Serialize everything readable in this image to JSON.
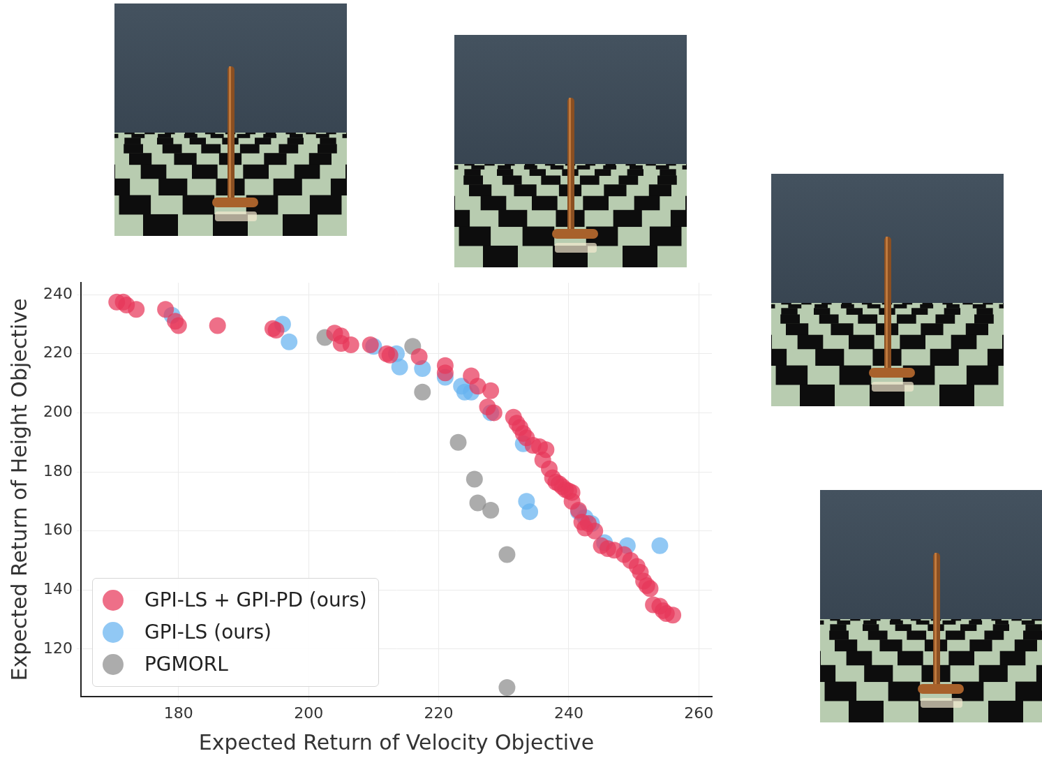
{
  "chart_data": {
    "type": "scatter",
    "x_label": "Expected Return of Velocity Objective",
    "y_label": "Expected Return of Height Objective",
    "xlim": [
      165,
      262
    ],
    "xticks": [
      180,
      200,
      220,
      240,
      260
    ],
    "ylim": [
      104,
      244
    ],
    "yticks": [
      120,
      140,
      160,
      180,
      200,
      220,
      240
    ],
    "grid": true,
    "legend": "lower left",
    "marker": "circle",
    "series": [
      {
        "name": "GPI-LS + GPI-PD (ours)",
        "color": "#e8375a",
        "x": [
          170.5,
          171.5,
          172,
          173.5,
          178,
          179.5,
          180,
          186,
          194.5,
          195,
          204,
          205,
          205,
          206.5,
          209.5,
          212,
          212.5,
          217,
          221,
          221,
          225,
          226,
          228,
          227.5,
          228.5,
          231.5,
          232,
          232.5,
          233,
          233.5,
          234.5,
          235.5,
          236.5,
          236,
          237,
          237.5,
          238,
          238.5,
          239,
          239.5,
          240,
          240.5,
          240.5,
          241.5,
          242,
          242.5,
          243,
          244,
          245,
          246,
          247,
          248.5,
          249.5,
          250.5,
          251,
          251.5,
          252,
          252.5,
          253,
          254,
          254.5,
          255,
          256
        ],
        "values": [
          237.5,
          237.5,
          236.5,
          235,
          235,
          231,
          229.5,
          229.5,
          228.5,
          228,
          227,
          226,
          223.5,
          223,
          223,
          220,
          219.5,
          219,
          216,
          213.5,
          212.5,
          209,
          207.5,
          202,
          200,
          198.5,
          196.5,
          195,
          193,
          191.5,
          189,
          188.5,
          187.5,
          184,
          181,
          178,
          176.5,
          176,
          175,
          174,
          173.5,
          173,
          170,
          167,
          163,
          161,
          162.5,
          160,
          155,
          154,
          153.5,
          152,
          150,
          148,
          146,
          143,
          141.5,
          140.5,
          135,
          134.5,
          133,
          132,
          131.5
        ]
      },
      {
        "name": "GPI-LS (ours)",
        "color": "#66b3f0",
        "x": [
          179,
          196,
          197,
          210,
          213.5,
          214,
          217.5,
          221,
          223.5,
          224,
          225,
          228,
          233,
          233.5,
          234,
          241.5,
          242.5,
          243.5,
          245.5,
          249,
          254
        ],
        "values": [
          233,
          230,
          224,
          222.5,
          220,
          215.5,
          215,
          212,
          209,
          207,
          207,
          200,
          189.5,
          170,
          166.5,
          166.5,
          164.5,
          162.5,
          156,
          155,
          155
        ]
      },
      {
        "name": "PGMORL",
        "color": "#8c8c8c",
        "x": [
          202.5,
          216,
          217.5,
          223,
          225.5,
          226,
          228,
          230.5,
          230.5
        ],
        "values": [
          225.5,
          222.5,
          207,
          190,
          177.5,
          169.5,
          167,
          152,
          107
        ]
      }
    ]
  }
}
